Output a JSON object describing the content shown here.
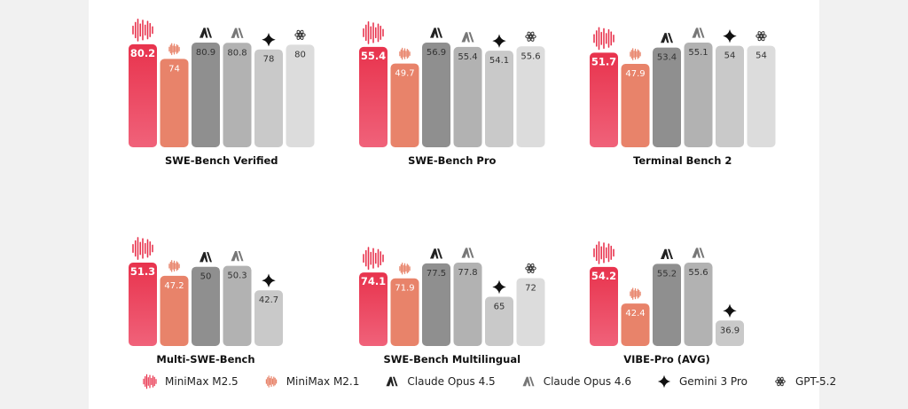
{
  "colors": {
    "MiniMax M2.5": "#e8334d",
    "MiniMax M2.1": "#e8836a",
    "Claude Opus 4.5": "#8f8f8f",
    "Claude Opus 4.6": "#b2b2b2",
    "Gemini 3 Pro": "#c9c9c9",
    "GPT-5.2": "#dcdcdc"
  },
  "legend": [
    {
      "label": "MiniMax M2.5",
      "icon": "wave-logo-icon"
    },
    {
      "label": "MiniMax M2.1",
      "icon": "wave-logo-light-icon"
    },
    {
      "label": "Claude Opus 4.5",
      "icon": "anthropic-icon"
    },
    {
      "label": "Claude Opus 4.6",
      "icon": "anthropic-outline-icon"
    },
    {
      "label": "Gemini 3 Pro",
      "icon": "gemini-star-icon"
    },
    {
      "label": "GPT-5.2",
      "icon": "openai-icon"
    }
  ],
  "chart_data": [
    {
      "type": "bar",
      "title": "SWE-Bench Verified",
      "series": [
        {
          "name": "MiniMax M2.5",
          "value": 80.2,
          "label": "80.2"
        },
        {
          "name": "MiniMax M2.1",
          "value": 74,
          "label": "74"
        },
        {
          "name": "Claude Opus 4.5",
          "value": 80.9,
          "label": "80.9"
        },
        {
          "name": "Claude Opus 4.6",
          "value": 80.8,
          "label": "80.8"
        },
        {
          "name": "Gemini 3 Pro",
          "value": 78,
          "label": "78"
        },
        {
          "name": "GPT-5.2",
          "value": 80,
          "label": "80"
        }
      ]
    },
    {
      "type": "bar",
      "title": "SWE-Bench Pro",
      "series": [
        {
          "name": "MiniMax M2.5",
          "value": 55.4,
          "label": "55.4"
        },
        {
          "name": "MiniMax M2.1",
          "value": 49.7,
          "label": "49.7"
        },
        {
          "name": "Claude Opus 4.5",
          "value": 56.9,
          "label": "56.9"
        },
        {
          "name": "Claude Opus 4.6",
          "value": 55.4,
          "label": "55.4"
        },
        {
          "name": "Gemini 3 Pro",
          "value": 54.1,
          "label": "54.1"
        },
        {
          "name": "GPT-5.2",
          "value": 55.6,
          "label": "55.6"
        }
      ]
    },
    {
      "type": "bar",
      "title": "Terminal Bench 2",
      "series": [
        {
          "name": "MiniMax M2.5",
          "value": 51.7,
          "label": "51.7"
        },
        {
          "name": "MiniMax M2.1",
          "value": 47.9,
          "label": "47.9"
        },
        {
          "name": "Claude Opus 4.5",
          "value": 53.4,
          "label": "53.4"
        },
        {
          "name": "Claude Opus 4.6",
          "value": 55.1,
          "label": "55.1"
        },
        {
          "name": "Gemini 3 Pro",
          "value": 54,
          "label": "54"
        },
        {
          "name": "GPT-5.2",
          "value": 54,
          "label": "54"
        }
      ]
    },
    {
      "type": "bar",
      "title": "Multi-SWE-Bench",
      "series": [
        {
          "name": "MiniMax M2.5",
          "value": 51.3,
          "label": "51.3"
        },
        {
          "name": "MiniMax M2.1",
          "value": 47.2,
          "label": "47.2"
        },
        {
          "name": "Claude Opus 4.5",
          "value": 50,
          "label": "50"
        },
        {
          "name": "Claude Opus 4.6",
          "value": 50.3,
          "label": "50.3"
        },
        {
          "name": "Gemini 3 Pro",
          "value": 42.7,
          "label": "42.7"
        }
      ]
    },
    {
      "type": "bar",
      "title": "SWE-Bench Multilingual",
      "series": [
        {
          "name": "MiniMax M2.5",
          "value": 74.1,
          "label": "74.1"
        },
        {
          "name": "MiniMax M2.1",
          "value": 71.9,
          "label": "71.9"
        },
        {
          "name": "Claude Opus 4.5",
          "value": 77.5,
          "label": "77.5"
        },
        {
          "name": "Claude Opus 4.6",
          "value": 77.8,
          "label": "77.8"
        },
        {
          "name": "Gemini 3 Pro",
          "value": 65,
          "label": "65"
        },
        {
          "name": "GPT-5.2",
          "value": 72,
          "label": "72"
        }
      ]
    },
    {
      "type": "bar",
      "title": "VIBE-Pro (AVG)",
      "series": [
        {
          "name": "MiniMax M2.5",
          "value": 54.2,
          "label": "54.2"
        },
        {
          "name": "MiniMax M2.1",
          "value": 42.4,
          "label": "42.4"
        },
        {
          "name": "Claude Opus 4.5",
          "value": 55.2,
          "label": "55.2"
        },
        {
          "name": "Claude Opus 4.6",
          "value": 55.6,
          "label": "55.6"
        },
        {
          "name": "Gemini 3 Pro",
          "value": 36.9,
          "label": "36.9"
        }
      ]
    }
  ]
}
